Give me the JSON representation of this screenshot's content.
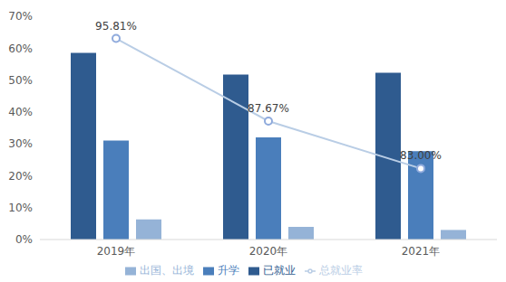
{
  "chart_data": {
    "type": "bar",
    "categories": [
      "2019年",
      "2020年",
      "2021年"
    ],
    "series": [
      {
        "name": "已就业",
        "color": "#2f5b8f",
        "values": [
          58.5,
          51.7,
          52.3
        ]
      },
      {
        "name": "升学",
        "color": "#4a7ebb",
        "values": [
          31.0,
          32.0,
          27.7
        ]
      },
      {
        "name": "出国、出境",
        "color": "#95b3d7",
        "values": [
          6.31,
          3.97,
          3.0
        ]
      },
      {
        "name": "总就业率",
        "type": "line",
        "color": "#b9cde5",
        "marker": "circle",
        "axis": "y2",
        "data_labels": true,
        "values": [
          95.81,
          87.67,
          83.0
        ],
        "value_labels": [
          "95.81%",
          "87.67%",
          "83.00%"
        ]
      }
    ],
    "ylim": [
      0,
      70
    ],
    "yticks": [
      {
        "value": 0,
        "label": "0%"
      },
      {
        "value": 10,
        "label": "10%"
      },
      {
        "value": 20,
        "label": "20%"
      },
      {
        "value": 30,
        "label": "30%"
      },
      {
        "value": 40,
        "label": "40%"
      },
      {
        "value": 50,
        "label": "50%"
      },
      {
        "value": 60,
        "label": "60%"
      },
      {
        "value": 70,
        "label": "70%"
      }
    ],
    "y2lim": [
      76,
      98
    ],
    "grid": false,
    "legend": "bottom"
  }
}
